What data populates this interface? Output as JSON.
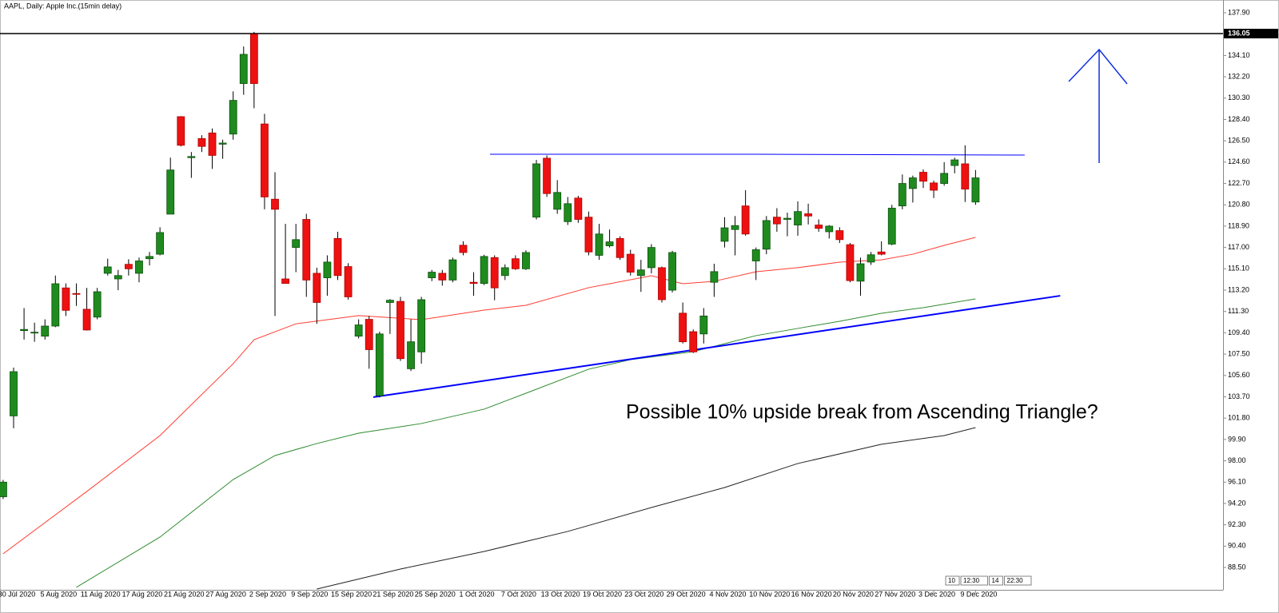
{
  "chart_data": {
    "type": "candlestick",
    "title": "AAPL, Daily:  Apple Inc.(15min delay)",
    "annotation": "Possible 10% upside break from Ascending Triangle?",
    "footer_tags": [
      "10",
      "12:30",
      "14",
      "22:30"
    ],
    "up_color": "#1f8b1f",
    "down_color": "#ee1111",
    "open": [
      94.8,
      102.0,
      109.6,
      109.4,
      109.1,
      110.0,
      113.4,
      112.9,
      111.5,
      110.8,
      114.7,
      114.2,
      115.5,
      114.7,
      116.0,
      116.4,
      119.97,
      128.65,
      125.0,
      126.7,
      127.2,
      126.2,
      127.1,
      131.6,
      136.0,
      128.0,
      121.3,
      114.2,
      117.0,
      119.5,
      114.7,
      114.3,
      117.8,
      115.3,
      109.1,
      110.6,
      103.8,
      112.1,
      112.2,
      106.2,
      107.7,
      114.3,
      114.7,
      114.1,
      117.2,
      113.9,
      113.8,
      116.1,
      114.5,
      116.0,
      115.1,
      119.7,
      124.95,
      120.4,
      119.3,
      121.4,
      119.7,
      116.3,
      117.15,
      117.8,
      116.4,
      114.5,
      115.2,
      115.2,
      113.2,
      111.15,
      109.5,
      109.3,
      113.9,
      117.55,
      118.6,
      120.7,
      115.8,
      116.85,
      119.7,
      119.5,
      119.0,
      120.0,
      119.0,
      118.4,
      118.5,
      117.25,
      114.0,
      115.7,
      116.6,
      117.3,
      120.7,
      122.25,
      123.7,
      122.75,
      122.7,
      124.3,
      124.45,
      121.05
    ],
    "high": [
      96.3,
      106.3,
      111.6,
      110.3,
      110.6,
      114.5,
      113.8,
      113.8,
      113.4,
      113.4,
      116.0,
      115.0,
      115.95,
      116.1,
      116.6,
      118.8,
      125.0,
      128.7,
      125.5,
      127.0,
      127.6,
      126.6,
      130.9,
      134.9,
      136.2,
      128.9,
      123.7,
      119.1,
      119.1,
      120.0,
      115.2,
      116.3,
      118.4,
      115.6,
      110.6,
      110.9,
      109.5,
      112.4,
      112.6,
      110.6,
      112.6,
      115.0,
      115.0,
      116.1,
      117.55,
      114.8,
      116.35,
      116.3,
      115.5,
      116.3,
      116.75,
      124.8,
      125.2,
      123.0,
      121.5,
      121.6,
      120.2,
      119.1,
      118.6,
      118.0,
      116.8,
      115.9,
      117.3,
      115.3,
      116.7,
      112.1,
      109.7,
      111.6,
      115.55,
      119.7,
      119.8,
      122.1,
      117.0,
      119.8,
      120.5,
      120.1,
      121.1,
      120.9,
      119.5,
      119.0,
      118.8,
      117.4,
      116.1,
      116.6,
      117.55,
      120.8,
      123.5,
      123.4,
      123.95,
      122.95,
      124.6,
      125.0,
      126.1,
      123.9
    ],
    "low": [
      94.6,
      100.9,
      108.8,
      108.6,
      108.8,
      109.9,
      110.9,
      111.8,
      109.6,
      110.6,
      114.5,
      113.2,
      114.5,
      113.9,
      115.4,
      116.3,
      119.97,
      126.0,
      123.2,
      125.5,
      124.0,
      124.9,
      126.6,
      130.6,
      129.4,
      120.4,
      110.9,
      113.8,
      114.8,
      112.6,
      110.2,
      112.7,
      114.1,
      112.35,
      108.9,
      106.2,
      103.65,
      109.3,
      106.9,
      106.0,
      106.65,
      114.0,
      113.6,
      113.9,
      116.3,
      112.7,
      113.65,
      112.3,
      114.1,
      115.0,
      115.0,
      119.5,
      121.5,
      120.0,
      119.0,
      119.2,
      116.3,
      115.9,
      117.0,
      115.9,
      114.5,
      113.05,
      114.7,
      112.1,
      113.0,
      108.45,
      107.6,
      108.45,
      112.6,
      117.0,
      116.3,
      118.05,
      114.1,
      116.4,
      118.4,
      118.0,
      118.05,
      119.05,
      118.4,
      117.8,
      117.4,
      113.9,
      112.7,
      115.45,
      116.3,
      117.2,
      120.4,
      121.0,
      122.3,
      121.4,
      122.5,
      123.6,
      121.05,
      120.8
    ],
    "close": [
      96.1,
      105.94,
      109.7,
      109.45,
      110.0,
      113.77,
      111.4,
      112.85,
      109.65,
      113.06,
      115.27,
      114.5,
      115.1,
      115.8,
      116.2,
      118.33,
      123.9,
      126.1,
      125.1,
      126.0,
      125.2,
      126.3,
      130.1,
      134.2,
      131.6,
      121.5,
      120.4,
      113.8,
      117.7,
      114.1,
      112.1,
      115.7,
      114.5,
      112.6,
      110.1,
      107.9,
      109.3,
      112.3,
      107.1,
      108.6,
      112.35,
      114.8,
      114.1,
      115.9,
      116.55,
      113.8,
      116.2,
      113.4,
      115.2,
      115.1,
      116.55,
      124.45,
      121.8,
      121.9,
      120.9,
      119.5,
      116.6,
      118.2,
      117.5,
      116.1,
      114.8,
      115.0,
      117.0,
      112.35,
      116.55,
      108.6,
      107.7,
      110.9,
      114.85,
      118.75,
      118.95,
      118.2,
      116.8,
      119.4,
      119.1,
      119.6,
      120.2,
      119.8,
      118.7,
      118.9,
      117.7,
      114.05,
      115.55,
      116.35,
      116.4,
      120.5,
      122.7,
      123.2,
      122.9,
      122.1,
      123.6,
      124.8,
      122.2,
      123.2
    ],
    "series": [
      {
        "color": "#ff3b30",
        "x": [
          0,
          8,
          15,
          22,
          24,
          28,
          34,
          40,
          46,
          50,
          56,
          62,
          65,
          68,
          72,
          76,
          80,
          84,
          87,
          90,
          93
        ],
        "values": [
          89.72,
          95.27,
          100.25,
          106.65,
          108.79,
          110.2,
          110.93,
          110.57,
          111.42,
          111.85,
          113.42,
          114.48,
          113.77,
          113.99,
          114.84,
          115.2,
          115.69,
          115.9,
          116.4,
          117.19,
          117.9
        ]
      },
      {
        "color": "#2e8b2e",
        "x": [
          7,
          15,
          22,
          26,
          30,
          34,
          40,
          46,
          50,
          56,
          60,
          66,
          69,
          72,
          76,
          80,
          84,
          88,
          93
        ],
        "values": [
          86.73,
          91.21,
          96.33,
          98.47,
          99.54,
          100.46,
          101.32,
          102.6,
          104.02,
          106.16,
          107.01,
          107.72,
          108.43,
          109.15,
          109.79,
          110.43,
          111.14,
          111.64,
          112.42
        ]
      },
      {
        "color": "#222222",
        "x": [
          30,
          38,
          46,
          54,
          62,
          69,
          76,
          84,
          90,
          93
        ],
        "values": [
          86.58,
          88.36,
          89.93,
          91.71,
          93.84,
          95.62,
          97.76,
          99.47,
          100.25,
          100.96
        ]
      }
    ],
    "trendlines": [
      {
        "color": "#0000ff",
        "width": 1,
        "x": [
          46.57,
          71.95,
          97.7
        ],
        "values": [
          125.3,
          125.3,
          125.23
        ]
      },
      {
        "color": "#0000ff",
        "width": 2,
        "x": [
          35.4,
          101.1
        ],
        "values": [
          103.67,
          112.7
        ]
      }
    ],
    "hline": 136.05,
    "xlim": [
      -0.3,
      116.67
    ],
    "ylim": [
      86.51,
      139.04
    ],
    "xticks": [
      {
        "value": 1,
        "label": "30 Jul 2020"
      },
      {
        "value": 5,
        "label": "5 Aug 2020"
      },
      {
        "value": 9,
        "label": "11 Aug 2020"
      },
      {
        "value": 13,
        "label": "17 Aug 2020"
      },
      {
        "value": 17,
        "label": "21 Aug 2020"
      },
      {
        "value": 21,
        "label": "27 Aug 2020"
      },
      {
        "value": 25,
        "label": "2 Sep 2020"
      },
      {
        "value": 29,
        "label": "9 Sep 2020"
      },
      {
        "value": 33,
        "label": "15 Sep 2020"
      },
      {
        "value": 37,
        "label": "21 Sep 2020"
      },
      {
        "value": 41,
        "label": "25 Sep 2020"
      },
      {
        "value": 45,
        "label": "1 Oct 2020"
      },
      {
        "value": 49,
        "label": "7 Oct 2020"
      },
      {
        "value": 53,
        "label": "13 Oct 2020"
      },
      {
        "value": 57,
        "label": "19 Oct 2020"
      },
      {
        "value": 61,
        "label": "23 Oct 2020"
      },
      {
        "value": 65,
        "label": "29 Oct 2020"
      },
      {
        "value": 69,
        "label": "4 Nov 2020"
      },
      {
        "value": 73,
        "label": "10 Nov 2020"
      },
      {
        "value": 77,
        "label": "16 Nov 2020"
      },
      {
        "value": 81,
        "label": "20 Nov 2020"
      },
      {
        "value": 85,
        "label": "27 Nov 2020"
      },
      {
        "value": 89,
        "label": "3 Dec 2020"
      },
      {
        "value": 93,
        "label": "9 Dec 2020"
      }
    ],
    "yticks": [
      {
        "value": 137.9,
        "label": "137.90"
      },
      136.05,
      {
        "value": 134.1,
        "label": "134.10"
      },
      {
        "value": 132.2,
        "label": "132.20"
      },
      {
        "value": 130.3,
        "label": "130.30"
      },
      {
        "value": 128.4,
        "label": "128.40"
      },
      {
        "value": 126.5,
        "label": "126.50"
      },
      {
        "value": 124.6,
        "label": "124.60"
      },
      {
        "value": 122.7,
        "label": "122.70"
      },
      {
        "value": 120.8,
        "label": "120.80"
      },
      {
        "value": 118.9,
        "label": "118.90"
      },
      {
        "value": 117.0,
        "label": "117.00"
      },
      {
        "value": 115.1,
        "label": "115.10"
      },
      {
        "value": 113.2,
        "label": "113.20"
      },
      {
        "value": 111.3,
        "label": "111.30"
      },
      {
        "value": 109.4,
        "label": "109.40"
      },
      {
        "value": 107.5,
        "label": "107.50"
      },
      {
        "value": 105.6,
        "label": "105.60"
      },
      {
        "value": 103.7,
        "label": "103.70"
      },
      {
        "value": 101.8,
        "label": "101.80"
      },
      {
        "value": 99.9,
        "label": "99.90"
      },
      {
        "value": 98.0,
        "label": "98.00"
      },
      {
        "value": 96.1,
        "label": "96.10"
      },
      {
        "value": 94.2,
        "label": "94.20"
      },
      {
        "value": 92.3,
        "label": "92.30"
      },
      {
        "value": 90.4,
        "label": "90.40"
      },
      {
        "value": 88.5,
        "label": "88.50"
      }
    ]
  }
}
